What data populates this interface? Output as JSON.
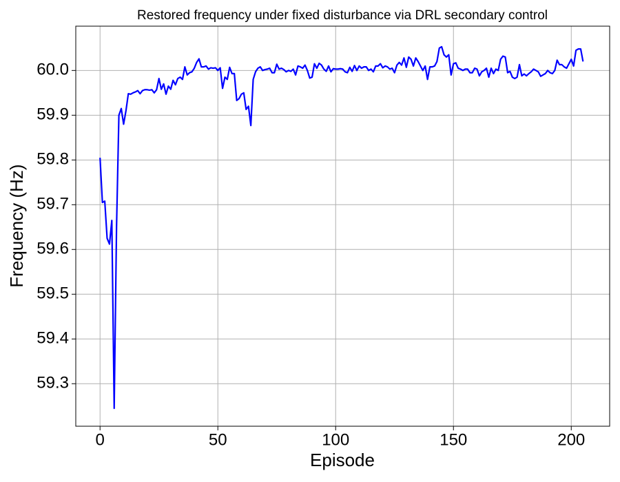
{
  "chart_data": {
    "type": "line",
    "title": "Restored frequency under fixed disturbance via DRL secondary control",
    "x_label": "Episode",
    "y_label": "Frequency (Hz)",
    "color": "#0000ff",
    "grid": true,
    "xlim": [
      -10.3,
      216.3
    ],
    "ylim": [
      59.205,
      60.099
    ],
    "xticks": [
      0,
      50,
      100,
      150,
      200
    ],
    "yticks": [
      59.3,
      59.4,
      59.5,
      59.6,
      59.7,
      59.8,
      59.9,
      {
        "value": 60,
        "label": "60.0"
      }
    ],
    "x": [
      0,
      1,
      2,
      3,
      4,
      5,
      6,
      7,
      8,
      9,
      10,
      11,
      12,
      13,
      14,
      15,
      16,
      17,
      18,
      19,
      20,
      21,
      22,
      23,
      24,
      25,
      26,
      27,
      28,
      29,
      30,
      31,
      32,
      33,
      34,
      35,
      36,
      37,
      38,
      39,
      40,
      41,
      42,
      43,
      44,
      45,
      46,
      47,
      48,
      49,
      50,
      51,
      52,
      53,
      54,
      55,
      56,
      57,
      58,
      59,
      60,
      61,
      62,
      63,
      64,
      65,
      66,
      67,
      68,
      69,
      70,
      71,
      72,
      73,
      74,
      75,
      76,
      77,
      78,
      79,
      80,
      81,
      82,
      83,
      84,
      85,
      86,
      87,
      88,
      89,
      90,
      91,
      92,
      93,
      94,
      95,
      96,
      97,
      98,
      99,
      100,
      101,
      102,
      103,
      104,
      105,
      106,
      107,
      108,
      109,
      110,
      111,
      112,
      113,
      114,
      115,
      116,
      117,
      118,
      119,
      120,
      121,
      122,
      123,
      124,
      125,
      126,
      127,
      128,
      129,
      130,
      131,
      132,
      133,
      134,
      135,
      136,
      137,
      138,
      139,
      140,
      141,
      142,
      143,
      144,
      145,
      146,
      147,
      148,
      149,
      150,
      151,
      152,
      153,
      154,
      155,
      156,
      157,
      158,
      159,
      160,
      161,
      162,
      163,
      164,
      165,
      166,
      167,
      168,
      169,
      170,
      171,
      172,
      173,
      174,
      175,
      176,
      177,
      178,
      179,
      180,
      181,
      182,
      183,
      184,
      185,
      186,
      187,
      188,
      189,
      190,
      191,
      192,
      193,
      194,
      195,
      196,
      197,
      198,
      199,
      200,
      201,
      202,
      203,
      204,
      205
    ],
    "values": [
      59.805,
      59.705,
      59.708,
      59.625,
      59.612,
      59.665,
      59.245,
      59.65,
      59.9,
      59.915,
      59.88,
      59.91,
      59.948,
      59.947,
      59.95,
      59.952,
      59.955,
      59.948,
      59.955,
      59.957,
      59.957,
      59.956,
      59.957,
      59.95,
      59.957,
      59.982,
      59.958,
      59.97,
      59.947,
      59.965,
      59.958,
      59.978,
      59.968,
      59.982,
      59.985,
      59.98,
      60.008,
      59.99,
      59.995,
      59.997,
      60.005,
      60.018,
      60.026,
      60.008,
      60.008,
      60.01,
      60.003,
      60.006,
      60.005,
      60.006,
      60.0,
      60.006,
      59.96,
      59.985,
      59.98,
      60.007,
      59.993,
      59.993,
      59.933,
      59.937,
      59.947,
      59.95,
      59.913,
      59.92,
      59.877,
      59.98,
      59.997,
      60.005,
      60.008,
      60.0,
      60.002,
      60.003,
      60.005,
      59.995,
      59.995,
      60.014,
      60.003,
      60.005,
      60.002,
      59.997,
      60.0,
      59.998,
      60.003,
      59.99,
      60.01,
      60.008,
      60.005,
      60.012,
      60.0,
      59.983,
      59.985,
      60.015,
      60.005,
      60.016,
      60.012,
      60.003,
      59.998,
      60.01,
      59.997,
      60.004,
      60.003,
      60.003,
      60.004,
      60.003,
      59.997,
      59.995,
      60.007,
      59.998,
      60.011,
      60.0,
      60.01,
      60.005,
      60.008,
      60.008,
      60.0,
      60.003,
      59.997,
      60.01,
      60.01,
      60.015,
      60.006,
      60.01,
      60.008,
      60.003,
      60.005,
      59.995,
      60.012,
      60.018,
      60.012,
      60.028,
      60.007,
      60.03,
      60.025,
      60.01,
      60.028,
      60.02,
      60.01,
      60.0,
      60.01,
      59.98,
      60.008,
      60.008,
      60.01,
      60.02,
      60.05,
      60.053,
      60.035,
      60.03,
      60.035,
      59.99,
      60.015,
      60.017,
      60.005,
      60.003,
      60.0,
      60.003,
      60.003,
      59.995,
      59.995,
      60.005,
      60.003,
      59.988,
      59.997,
      60.0,
      60.005,
      59.985,
      60.005,
      59.993,
      60.003,
      60.0,
      60.025,
      60.032,
      60.03,
      59.995,
      59.998,
      59.985,
      59.982,
      59.985,
      60.013,
      59.988,
      59.992,
      59.988,
      59.993,
      59.997,
      60.003,
      60.0,
      59.997,
      59.987,
      59.99,
      59.993,
      60.0,
      59.995,
      59.993,
      60.0,
      60.023,
      60.013,
      60.013,
      60.008,
      60.005,
      60.015,
      60.025,
      60.01,
      60.045,
      60.048,
      60.048,
      60.02
    ]
  }
}
